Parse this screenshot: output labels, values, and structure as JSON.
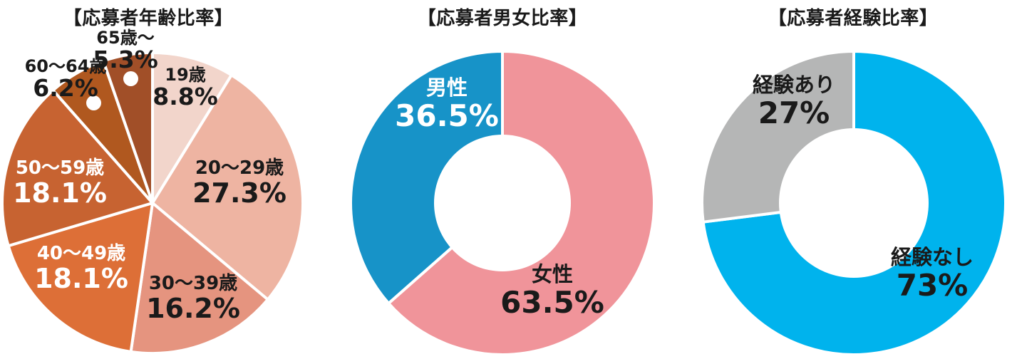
{
  "chart_data": [
    {
      "type": "pie",
      "title": "【応募者年齢比率】",
      "categories": [
        "19歳",
        "20～29歳",
        "30～39歳",
        "40～49歳",
        "50～59歳",
        "60～64歳",
        "65歳～"
      ],
      "values": [
        8.8,
        27.3,
        16.2,
        18.1,
        18.1,
        6.2,
        5.3
      ],
      "value_labels": [
        "8.8%",
        "27.3%",
        "16.2%",
        "18.1%",
        "18.1%",
        "6.2%",
        "5.3%"
      ],
      "colors": [
        "#f2d5cb",
        "#eeb4a2",
        "#e5947f",
        "#dd6f37",
        "#c76331",
        "#b0581f",
        "#a14f28"
      ],
      "label_text_colors": [
        "#1a1a1a",
        "#1a1a1a",
        "#1a1a1a",
        "#ffffff",
        "#ffffff",
        "#1a1a1a",
        "#1a1a1a"
      ],
      "start_angle_deg": 0,
      "direction": "clockwise",
      "divider_color": "#ffffff",
      "labels_on_chart": true,
      "legend_position": "none",
      "marker_dots": [
        "60～64歳",
        "65歳～"
      ]
    },
    {
      "type": "pie",
      "subtype": "donut",
      "title": "【応募者男女比率】",
      "categories": [
        "女性",
        "男性"
      ],
      "values": [
        63.5,
        36.5
      ],
      "value_labels": [
        "63.5%",
        "36.5%"
      ],
      "colors": [
        "#f0949a",
        "#1793c8"
      ],
      "label_text_colors": [
        "#1a1a1a",
        "#ffffff"
      ],
      "start_angle_deg": 0,
      "direction": "clockwise",
      "divider_color": "#ffffff",
      "labels_on_chart": true,
      "legend_position": "none"
    },
    {
      "type": "pie",
      "subtype": "donut",
      "title": "【応募者経験比率】",
      "categories": [
        "経験なし",
        "経験あり"
      ],
      "values": [
        73,
        27
      ],
      "value_labels": [
        "73%",
        "27%"
      ],
      "colors": [
        "#00b3ed",
        "#b5b6b6"
      ],
      "label_text_colors": [
        "#1a1a1a",
        "#1a1a1a"
      ],
      "start_angle_deg": 0,
      "direction": "clockwise",
      "divider_color": "#ffffff",
      "labels_on_chart": true,
      "legend_position": "none"
    }
  ]
}
